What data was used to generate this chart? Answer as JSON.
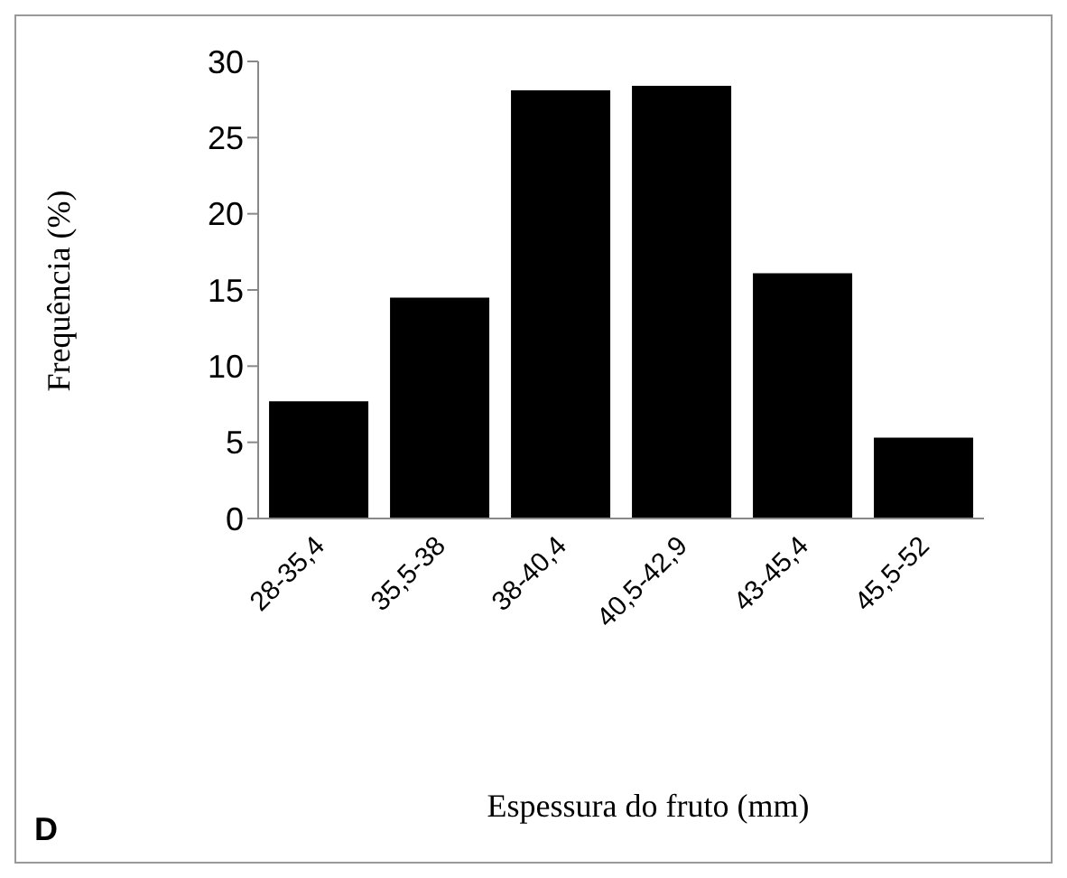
{
  "chart_data": {
    "type": "bar",
    "xlabel": "Espessura do fruto (mm)",
    "ylabel": "Frequência (%)",
    "categories": [
      "28-35,4",
      "35,5-38",
      "38-40,4",
      "40,5-42,9",
      "43-45,4",
      "45,5-52"
    ],
    "values": [
      7.7,
      14.5,
      28.1,
      28.4,
      16.1,
      5.3
    ],
    "color": "#000000",
    "ylim": [
      0,
      30
    ],
    "yticks": [
      0,
      5,
      10,
      15,
      20,
      25,
      30
    ],
    "grid": false,
    "legend": false,
    "annotations": [
      "D"
    ]
  }
}
